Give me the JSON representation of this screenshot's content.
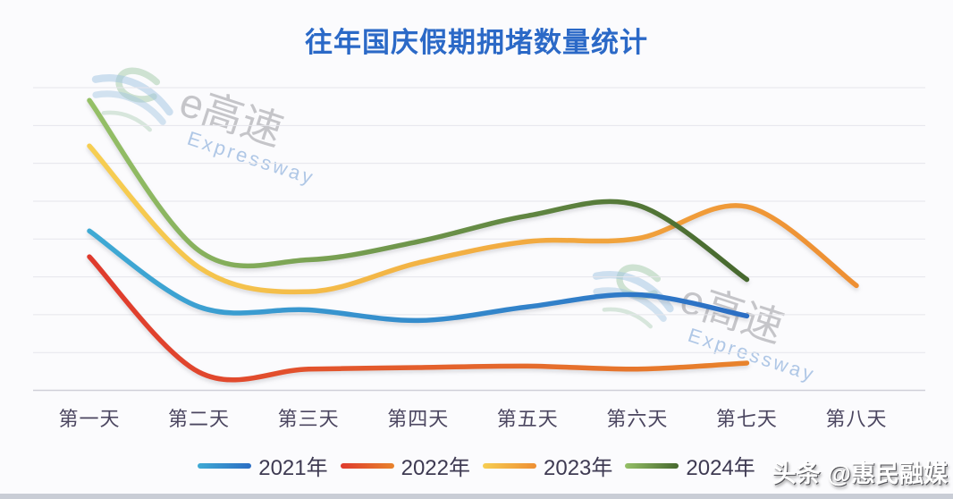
{
  "page": {
    "background": "#FBFBFD",
    "bottom_bar_color": "#C9CDD6"
  },
  "title": {
    "text": "往年国庆假期拥堵数量统计",
    "color": "#2B69C7"
  },
  "watermark": {
    "brand": "e高速",
    "brand_en": "Expressway"
  },
  "credit": {
    "prefix": "头条",
    "handle": "@惠民融媒"
  },
  "chart_data": {
    "type": "line",
    "title": "往年国庆假期拥堵数量统计",
    "categories": [
      "第一天",
      "第二天",
      "第三天",
      "第四天",
      "第五天",
      "第六天",
      "第七天",
      "第八天"
    ],
    "series": [
      {
        "name": "2021年",
        "color_start": "#3FAAD4",
        "color_end": "#2B6EC4",
        "values": [
          52.5,
          27.5,
          26.5,
          23,
          27.5,
          31.5,
          24.5,
          null
        ]
      },
      {
        "name": "2022年",
        "color_start": "#DF3A2D",
        "color_end": "#E8832C",
        "values": [
          44,
          6,
          7,
          7.5,
          8,
          7,
          9,
          null
        ]
      },
      {
        "name": "2023年",
        "color_start": "#F6CE52",
        "color_end": "#EE8F33",
        "values": [
          80.5,
          40.5,
          32.5,
          42,
          49,
          50,
          60.5,
          34.5
        ]
      },
      {
        "name": "2024年",
        "color_start": "#95C067",
        "color_end": "#46682E",
        "values": [
          95.5,
          46,
          43,
          49,
          57.5,
          61,
          36.5,
          null
        ]
      }
    ],
    "xlabel": "",
    "ylabel": "",
    "ylim": [
      0,
      100
    ],
    "y_axis": "unlabeled; values estimated as percent of plot height",
    "grid": "horizontal",
    "legend_position": "bottom",
    "curve": "smooth"
  }
}
